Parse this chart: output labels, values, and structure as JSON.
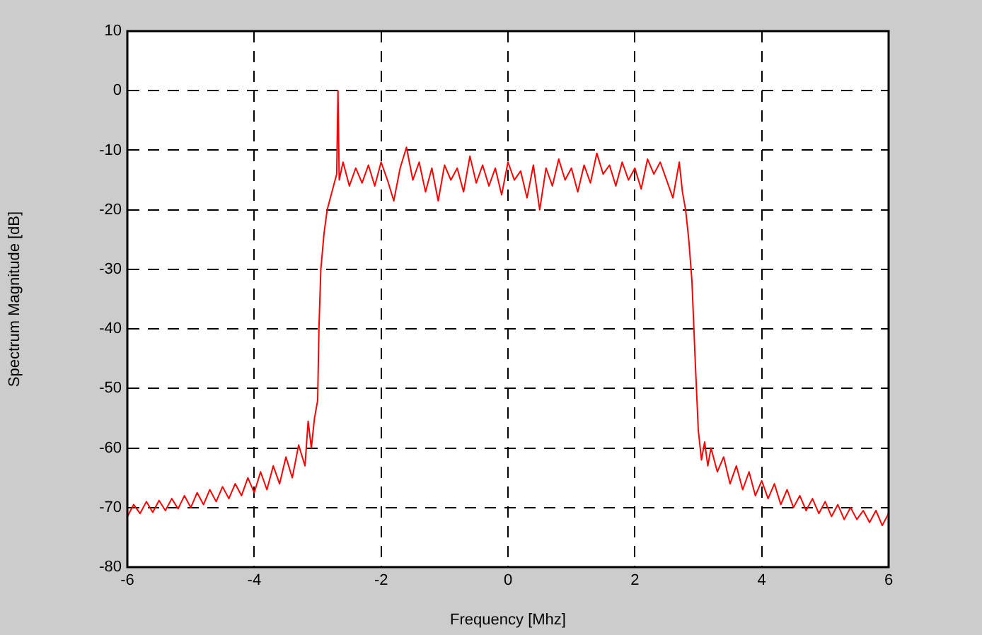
{
  "chart_data": {
    "type": "line",
    "xlabel": "Frequency [Mhz]",
    "ylabel": "Spectrum Magnitude [dB]",
    "xlim": [
      -6,
      6
    ],
    "xticks": [
      -6,
      -4,
      -2,
      0,
      2,
      4,
      6
    ],
    "ylim": [
      -80,
      10
    ],
    "yticks": [
      -80,
      -70,
      -60,
      -50,
      -40,
      -30,
      -20,
      -10,
      0,
      10
    ],
    "grid": true,
    "legend": false,
    "marker": "none",
    "line_style": "solid",
    "series": [
      {
        "color": "#ff0000",
        "x": [
          -6.0,
          -5.9,
          -5.8,
          -5.7,
          -5.6,
          -5.5,
          -5.4,
          -5.3,
          -5.2,
          -5.1,
          -5.0,
          -4.9,
          -4.8,
          -4.7,
          -4.6,
          -4.5,
          -4.4,
          -4.3,
          -4.2,
          -4.1,
          -4.0,
          -3.9,
          -3.8,
          -3.7,
          -3.6,
          -3.5,
          -3.4,
          -3.3,
          -3.2,
          -3.15,
          -3.1,
          -3.05,
          -3.0,
          -2.98,
          -2.95,
          -2.9,
          -2.85,
          -2.8,
          -2.75,
          -2.7,
          -2.68,
          -2.66,
          -2.6,
          -2.5,
          -2.4,
          -2.3,
          -2.2,
          -2.1,
          -2.0,
          -1.9,
          -1.8,
          -1.7,
          -1.6,
          -1.5,
          -1.4,
          -1.3,
          -1.2,
          -1.1,
          -1.0,
          -0.9,
          -0.8,
          -0.7,
          -0.6,
          -0.5,
          -0.4,
          -0.3,
          -0.2,
          -0.1,
          0.0,
          0.1,
          0.2,
          0.3,
          0.4,
          0.5,
          0.6,
          0.7,
          0.8,
          0.9,
          1.0,
          1.1,
          1.2,
          1.3,
          1.4,
          1.5,
          1.6,
          1.7,
          1.8,
          1.9,
          2.0,
          2.1,
          2.2,
          2.3,
          2.4,
          2.5,
          2.6,
          2.7,
          2.75,
          2.8,
          2.85,
          2.9,
          2.95,
          3.0,
          3.05,
          3.1,
          3.15,
          3.2,
          3.3,
          3.4,
          3.5,
          3.6,
          3.7,
          3.8,
          3.9,
          4.0,
          4.1,
          4.2,
          4.3,
          4.4,
          4.5,
          4.6,
          4.7,
          4.8,
          4.9,
          5.0,
          5.1,
          5.2,
          5.3,
          5.4,
          5.5,
          5.6,
          5.7,
          5.8,
          5.9,
          6.0
        ],
        "values": [
          -71.5,
          -69.5,
          -71,
          -69,
          -70.8,
          -68.8,
          -70.5,
          -68.5,
          -70.2,
          -68,
          -70,
          -67.5,
          -69.5,
          -67,
          -69,
          -66.5,
          -68.5,
          -66,
          -68,
          -65,
          -67.5,
          -64,
          -67,
          -63,
          -66,
          -61.5,
          -65,
          -59.5,
          -63,
          -55.5,
          -60,
          -55,
          -52,
          -40,
          -30,
          -24,
          -20,
          -18,
          -16,
          -14,
          0,
          -15,
          -12,
          -16,
          -13,
          -15.5,
          -12.5,
          -16,
          -12,
          -15,
          -18.5,
          -13,
          -9.5,
          -15,
          -12,
          -17,
          -13,
          -18.5,
          -12.5,
          -15,
          -13,
          -17,
          -11,
          -15.5,
          -12.5,
          -16,
          -13,
          -17.5,
          -12,
          -15,
          -13.5,
          -18,
          -12.5,
          -20,
          -13,
          -16,
          -11.5,
          -15,
          -13,
          -17,
          -12.5,
          -15.5,
          -10.5,
          -14,
          -12.5,
          -16,
          -12,
          -15,
          -13,
          -16.5,
          -11.5,
          -14,
          -12,
          -15,
          -18,
          -12,
          -17,
          -20,
          -25,
          -32,
          -45,
          -57,
          -62,
          -59,
          -63,
          -60,
          -64,
          -61.5,
          -66,
          -63,
          -67,
          -64,
          -68,
          -65.5,
          -68.5,
          -66,
          -69.5,
          -67,
          -70,
          -68,
          -70.5,
          -68.5,
          -71,
          -69,
          -71.5,
          -69.5,
          -72,
          -70,
          -72,
          -70.5,
          -72.5,
          -70.5,
          -73,
          -71
        ]
      }
    ]
  }
}
